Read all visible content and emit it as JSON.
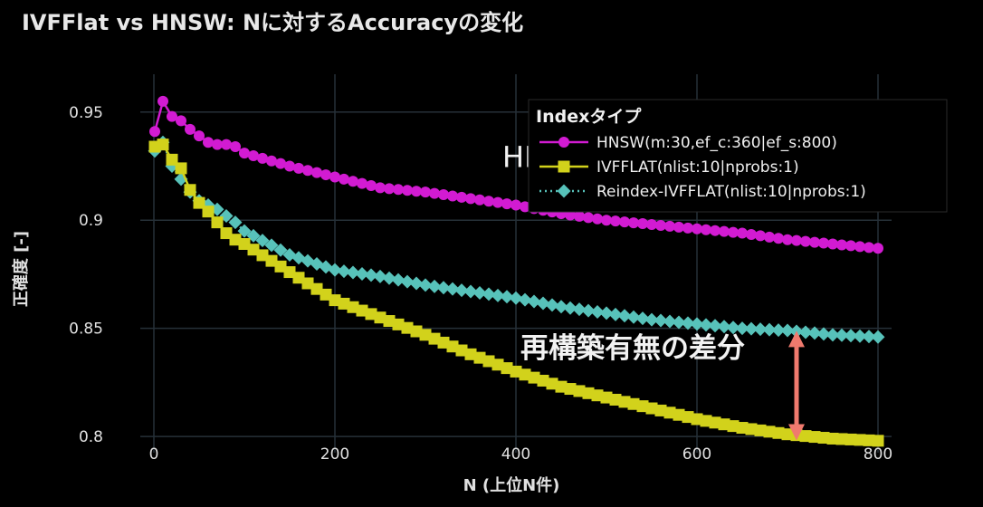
{
  "chart_data": {
    "type": "line",
    "title": "IVFFlat vs HNSW: Nに対するAccuracyの変化",
    "xlabel": "N (上位N件)",
    "ylabel": "正確度 [-]",
    "xlim": [
      -15,
      815
    ],
    "ylim": [
      0.7925,
      0.9675
    ],
    "xticks": [
      0,
      200,
      400,
      600,
      800
    ],
    "yticks": [
      0.8,
      0.85,
      0.9,
      0.95
    ],
    "ytick_labels": [
      "0.8",
      "0.85",
      "0.9",
      "0.95"
    ],
    "grid": true,
    "legend": {
      "title": "Indexタイプ",
      "placement": "top-right"
    },
    "series": [
      {
        "name": "HNSW(m:30,ef_c:360|ef_s:800)",
        "color": "#d21bd2",
        "marker": "circle",
        "dash": "solid",
        "x": [
          1,
          10,
          20,
          30,
          40,
          50,
          60,
          70,
          80,
          90,
          100,
          150,
          200,
          250,
          300,
          350,
          400,
          450,
          500,
          550,
          600,
          650,
          700,
          750,
          800
        ],
        "y": [
          0.941,
          0.955,
          0.948,
          0.946,
          0.942,
          0.939,
          0.936,
          0.935,
          0.935,
          0.934,
          0.931,
          0.925,
          0.92,
          0.915,
          0.913,
          0.91,
          0.907,
          0.903,
          0.9,
          0.898,
          0.896,
          0.894,
          0.891,
          0.889,
          0.887
        ]
      },
      {
        "name": "IVFFLAT(nlist:10|nprobs:1)",
        "color": "#d2d21b",
        "marker": "square",
        "dash": "solid",
        "x": [
          1,
          10,
          20,
          30,
          40,
          50,
          60,
          70,
          80,
          90,
          100,
          150,
          200,
          250,
          300,
          350,
          400,
          450,
          500,
          550,
          600,
          650,
          700,
          750,
          800
        ],
        "y": [
          0.934,
          0.935,
          0.928,
          0.924,
          0.914,
          0.908,
          0.904,
          0.899,
          0.894,
          0.891,
          0.889,
          0.876,
          0.863,
          0.855,
          0.847,
          0.838,
          0.83,
          0.823,
          0.818,
          0.813,
          0.808,
          0.804,
          0.801,
          0.799,
          0.798
        ]
      },
      {
        "name": "Reindex-IVFFLAT(nlist:10|nprobs:1)",
        "color": "#57c2ba",
        "marker": "diamond",
        "dash": "dot",
        "x": [
          1,
          10,
          20,
          30,
          40,
          50,
          60,
          70,
          80,
          90,
          100,
          150,
          200,
          250,
          300,
          350,
          400,
          450,
          500,
          550,
          600,
          650,
          700,
          750,
          800
        ],
        "y": [
          0.932,
          0.936,
          0.925,
          0.919,
          0.913,
          0.909,
          0.907,
          0.905,
          0.902,
          0.899,
          0.895,
          0.884,
          0.877,
          0.874,
          0.87,
          0.867,
          0.864,
          0.86,
          0.857,
          0.854,
          0.852,
          0.85,
          0.849,
          0.847,
          0.846
        ]
      }
    ],
    "annotations": [
      {
        "text": "HNSW",
        "x": 385,
        "y": 0.9245
      },
      {
        "text": "再構築有無の差分",
        "x": 405,
        "y": 0.8365
      }
    ],
    "arrow": {
      "x": 710,
      "y_from": 0.799,
      "y_to": 0.848,
      "color": "#f07a6e"
    }
  }
}
